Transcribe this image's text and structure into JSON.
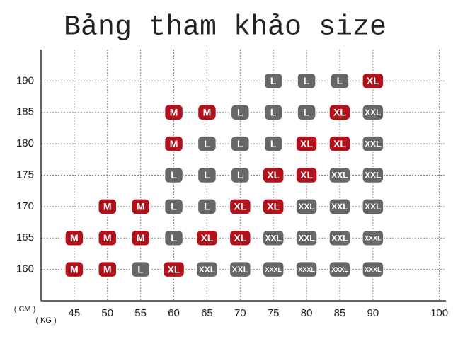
{
  "chart_data": {
    "type": "matrix",
    "title": "Bảng tham khảo size",
    "y_label": "( CM )",
    "x_label": "( KG )",
    "xlim": [
      40,
      101
    ],
    "ylim": [
      155,
      195
    ],
    "xticks": [
      45,
      50,
      55,
      60,
      65,
      70,
      75,
      80,
      85,
      90,
      100
    ],
    "yticks": [
      160,
      165,
      170,
      175,
      180,
      185,
      190
    ],
    "grid": true,
    "size_colors": {
      "M": "#b3121c",
      "XL": "#b3121c",
      "L": "#676767",
      "XXL": "#676767",
      "XXXL": "#676767"
    },
    "points": [
      {
        "x": 75,
        "y": 190,
        "label": "L"
      },
      {
        "x": 80,
        "y": 190,
        "label": "L"
      },
      {
        "x": 85,
        "y": 190,
        "label": "L"
      },
      {
        "x": 90,
        "y": 190,
        "label": "XL"
      },
      {
        "x": 60,
        "y": 185,
        "label": "M"
      },
      {
        "x": 65,
        "y": 185,
        "label": "M"
      },
      {
        "x": 70,
        "y": 185,
        "label": "L"
      },
      {
        "x": 75,
        "y": 185,
        "label": "L"
      },
      {
        "x": 80,
        "y": 185,
        "label": "L"
      },
      {
        "x": 85,
        "y": 185,
        "label": "XL"
      },
      {
        "x": 90,
        "y": 185,
        "label": "XXL"
      },
      {
        "x": 60,
        "y": 180,
        "label": "M"
      },
      {
        "x": 65,
        "y": 180,
        "label": "L"
      },
      {
        "x": 70,
        "y": 180,
        "label": "L"
      },
      {
        "x": 75,
        "y": 180,
        "label": "L"
      },
      {
        "x": 80,
        "y": 180,
        "label": "XL"
      },
      {
        "x": 85,
        "y": 180,
        "label": "XL"
      },
      {
        "x": 90,
        "y": 180,
        "label": "XXL"
      },
      {
        "x": 60,
        "y": 175,
        "label": "L"
      },
      {
        "x": 65,
        "y": 175,
        "label": "L"
      },
      {
        "x": 70,
        "y": 175,
        "label": "L"
      },
      {
        "x": 75,
        "y": 175,
        "label": "XL"
      },
      {
        "x": 80,
        "y": 175,
        "label": "XL"
      },
      {
        "x": 85,
        "y": 175,
        "label": "XXL"
      },
      {
        "x": 90,
        "y": 175,
        "label": "XXL"
      },
      {
        "x": 50,
        "y": 170,
        "label": "M"
      },
      {
        "x": 55,
        "y": 170,
        "label": "M"
      },
      {
        "x": 60,
        "y": 170,
        "label": "L"
      },
      {
        "x": 65,
        "y": 170,
        "label": "L"
      },
      {
        "x": 70,
        "y": 170,
        "label": "XL"
      },
      {
        "x": 75,
        "y": 170,
        "label": "XL"
      },
      {
        "x": 80,
        "y": 170,
        "label": "XXL"
      },
      {
        "x": 85,
        "y": 170,
        "label": "XXL"
      },
      {
        "x": 90,
        "y": 170,
        "label": "XXL"
      },
      {
        "x": 45,
        "y": 165,
        "label": "M"
      },
      {
        "x": 50,
        "y": 165,
        "label": "M"
      },
      {
        "x": 55,
        "y": 165,
        "label": "M"
      },
      {
        "x": 60,
        "y": 165,
        "label": "L"
      },
      {
        "x": 65,
        "y": 165,
        "label": "XL"
      },
      {
        "x": 70,
        "y": 165,
        "label": "XL"
      },
      {
        "x": 75,
        "y": 165,
        "label": "XXL"
      },
      {
        "x": 80,
        "y": 165,
        "label": "XXL"
      },
      {
        "x": 85,
        "y": 165,
        "label": "XXL"
      },
      {
        "x": 90,
        "y": 165,
        "label": "XXXL"
      },
      {
        "x": 45,
        "y": 160,
        "label": "M"
      },
      {
        "x": 50,
        "y": 160,
        "label": "M"
      },
      {
        "x": 55,
        "y": 160,
        "label": "L"
      },
      {
        "x": 60,
        "y": 160,
        "label": "XL"
      },
      {
        "x": 65,
        "y": 160,
        "label": "XXL"
      },
      {
        "x": 70,
        "y": 160,
        "label": "XXL"
      },
      {
        "x": 75,
        "y": 160,
        "label": "XXXL"
      },
      {
        "x": 80,
        "y": 160,
        "label": "XXXL"
      },
      {
        "x": 85,
        "y": 160,
        "label": "XXXL"
      },
      {
        "x": 90,
        "y": 160,
        "label": "XXXL"
      }
    ]
  }
}
